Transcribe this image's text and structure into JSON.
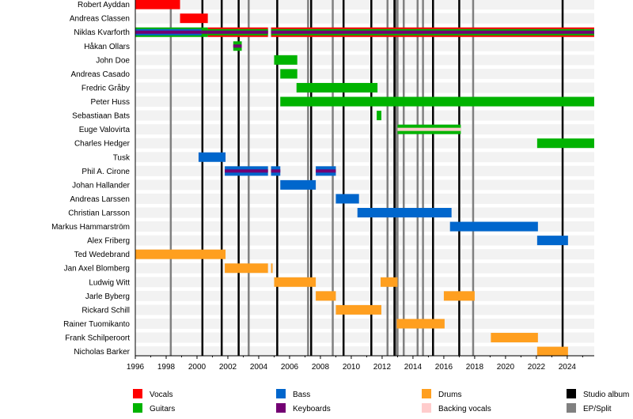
{
  "chart_data": {
    "type": "timeline",
    "xlim": [
      1996,
      2025.75
    ],
    "x_ticks": [
      1996,
      1998,
      2000,
      2002,
      2004,
      2006,
      2008,
      2010,
      2012,
      2014,
      2016,
      2018,
      2020,
      2022,
      2024
    ],
    "background_stripes": true,
    "legend_placement": "bottom",
    "colors": {
      "Vocals": "#ff0000",
      "Guitars": "#00b300",
      "Bass": "#0066cc",
      "Keyboards": "#730073",
      "Drums": "#ff9f1f",
      "Backing vocals": "#ffcccc",
      "Studio album": "#000000",
      "EP/Split": "#808080"
    },
    "legend": [
      "Vocals",
      "Guitars",
      "Bass",
      "Drums",
      "Keyboards",
      "Backing vocals",
      "Studio album",
      "EP/Split"
    ],
    "legend_order": [
      [
        "Vocals",
        "Guitars"
      ],
      [
        "Bass",
        "Keyboards"
      ],
      [
        "Drums",
        "Backing vocals"
      ],
      [
        "Studio album",
        "EP/Split"
      ]
    ],
    "studio_albums": [
      2000.35,
      2001.6,
      2002.7,
      2005.2,
      2007.4,
      2009.5,
      2011.3,
      2012.8,
      2015.3,
      2017.0,
      2023.7
    ],
    "ep_splits": [
      1998.3,
      2003.35,
      2007.2,
      2008.8,
      2012.35,
      2012.9,
      2013.0,
      2013.4,
      2014.3,
      2014.65,
      2017.9
    ],
    "members": [
      {
        "name": "Robert Ayddan",
        "segments": [
          {
            "start": 1996,
            "end": 1998.9,
            "roles": [
              "Vocals"
            ]
          }
        ]
      },
      {
        "name": "Andreas Classen",
        "segments": [
          {
            "start": 1998.9,
            "end": 2000.7,
            "roles": [
              "Vocals"
            ]
          }
        ]
      },
      {
        "name": "Niklas Kvarforth",
        "segments": [
          {
            "start": 1996,
            "end": 2000.3,
            "roles": [
              "Guitars",
              "Bass",
              "Keyboards"
            ]
          },
          {
            "start": 2000.3,
            "end": 2000.7,
            "roles": [
              "Guitars",
              "Keyboards"
            ]
          },
          {
            "start": 2000.7,
            "end": 2004.6,
            "roles": [
              "Vocals",
              "Guitars",
              "Keyboards"
            ]
          },
          {
            "start": 2004.8,
            "end": 2025.75,
            "roles": [
              "Vocals",
              "Guitars",
              "Keyboards"
            ]
          }
        ]
      },
      {
        "name": "Håkan Ollars",
        "segments": [
          {
            "start": 2002.35,
            "end": 2002.9,
            "roles": [
              "Guitars",
              "Keyboards"
            ]
          }
        ]
      },
      {
        "name": "John Doe",
        "segments": [
          {
            "start": 2005.0,
            "end": 2006.5,
            "roles": [
              "Guitars"
            ]
          }
        ]
      },
      {
        "name": "Andreas Casado",
        "segments": [
          {
            "start": 2005.4,
            "end": 2006.5,
            "roles": [
              "Guitars"
            ]
          }
        ]
      },
      {
        "name": "Fredric Gråby",
        "segments": [
          {
            "start": 2006.45,
            "end": 2011.7,
            "roles": [
              "Guitars"
            ]
          }
        ]
      },
      {
        "name": "Peter Huss",
        "segments": [
          {
            "start": 2005.4,
            "end": 2025.75,
            "roles": [
              "Guitars"
            ]
          }
        ]
      },
      {
        "name": "Sebastiaan Bats",
        "segments": [
          {
            "start": 2011.65,
            "end": 2011.95,
            "roles": [
              "Guitars"
            ]
          }
        ]
      },
      {
        "name": "Euge Valovirta",
        "segments": [
          {
            "start": 2013.0,
            "end": 2017.1,
            "roles": [
              "Guitars",
              "Backing vocals"
            ]
          }
        ]
      },
      {
        "name": "Charles Hedger",
        "segments": [
          {
            "start": 2022.05,
            "end": 2025.75,
            "roles": [
              "Guitars"
            ]
          }
        ]
      },
      {
        "name": "Tusk",
        "segments": [
          {
            "start": 2000.1,
            "end": 2001.85,
            "roles": [
              "Bass"
            ]
          }
        ]
      },
      {
        "name": "Phil A. Cirone",
        "segments": [
          {
            "start": 2001.8,
            "end": 2004.6,
            "roles": [
              "Bass",
              "Keyboards"
            ]
          },
          {
            "start": 2004.8,
            "end": 2005.4,
            "roles": [
              "Bass",
              "Keyboards"
            ]
          },
          {
            "start": 2007.7,
            "end": 2009.0,
            "roles": [
              "Bass",
              "Keyboards"
            ]
          }
        ]
      },
      {
        "name": "Johan Hallander",
        "segments": [
          {
            "start": 2005.4,
            "end": 2007.7,
            "roles": [
              "Bass"
            ]
          }
        ]
      },
      {
        "name": "Andreas Larssen",
        "segments": [
          {
            "start": 2009.0,
            "end": 2010.5,
            "roles": [
              "Bass"
            ]
          }
        ]
      },
      {
        "name": "Christian Larsson",
        "segments": [
          {
            "start": 2010.4,
            "end": 2016.5,
            "roles": [
              "Bass"
            ]
          }
        ]
      },
      {
        "name": "Markus Hammarström",
        "segments": [
          {
            "start": 2016.4,
            "end": 2022.1,
            "roles": [
              "Bass"
            ]
          }
        ]
      },
      {
        "name": "Alex Friberg",
        "segments": [
          {
            "start": 2022.05,
            "end": 2024.05,
            "roles": [
              "Bass"
            ]
          }
        ]
      },
      {
        "name": "Ted Wedebrand",
        "segments": [
          {
            "start": 1996,
            "end": 2001.85,
            "roles": [
              "Drums"
            ]
          }
        ]
      },
      {
        "name": "Jan Axel Blomberg",
        "segments": [
          {
            "start": 2001.8,
            "end": 2004.6,
            "roles": [
              "Drums"
            ]
          },
          {
            "start": 2004.8,
            "end": 2004.9,
            "roles": [
              "Drums"
            ]
          }
        ]
      },
      {
        "name": "Ludwig Witt",
        "segments": [
          {
            "start": 2005.0,
            "end": 2007.7,
            "roles": [
              "Drums"
            ]
          },
          {
            "start": 2011.9,
            "end": 2013.0,
            "roles": [
              "Drums"
            ]
          }
        ]
      },
      {
        "name": "Jarle Byberg",
        "segments": [
          {
            "start": 2007.7,
            "end": 2009.0,
            "roles": [
              "Drums"
            ]
          },
          {
            "start": 2016.0,
            "end": 2018.0,
            "roles": [
              "Drums"
            ]
          }
        ]
      },
      {
        "name": "Rickard Schill",
        "segments": [
          {
            "start": 2009.0,
            "end": 2011.95,
            "roles": [
              "Drums"
            ]
          }
        ]
      },
      {
        "name": "Rainer Tuomikanto",
        "segments": [
          {
            "start": 2012.95,
            "end": 2016.05,
            "roles": [
              "Drums"
            ]
          }
        ]
      },
      {
        "name": "Frank Schilperoort",
        "segments": [
          {
            "start": 2019.05,
            "end": 2022.1,
            "roles": [
              "Drums"
            ]
          }
        ]
      },
      {
        "name": "Nicholas Barker",
        "segments": [
          {
            "start": 2022.05,
            "end": 2024.05,
            "roles": [
              "Drums"
            ]
          }
        ]
      }
    ]
  }
}
